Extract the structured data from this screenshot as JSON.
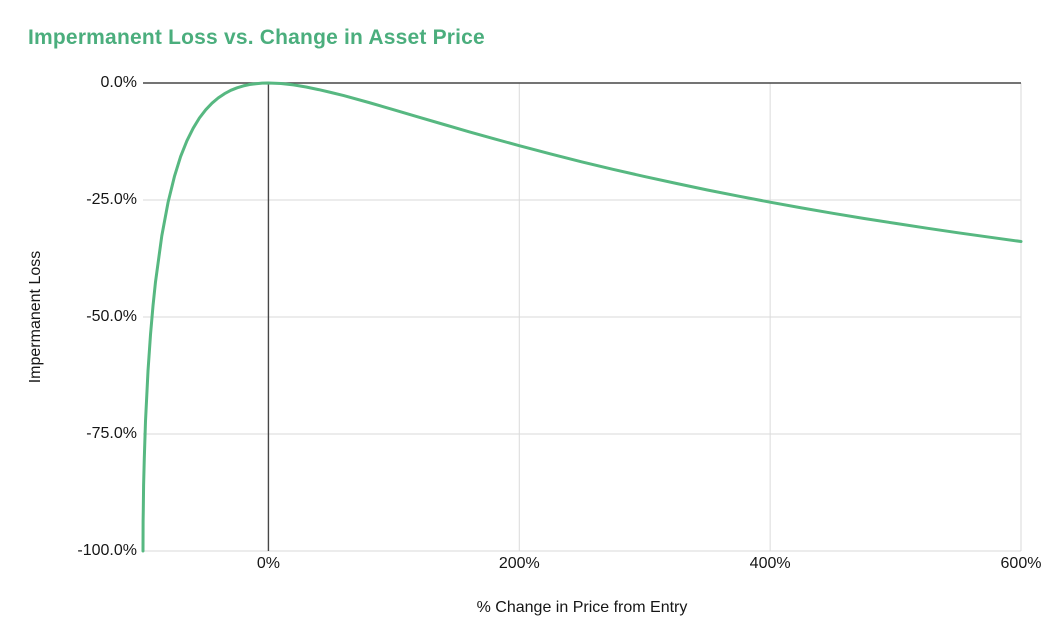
{
  "title": "Impermanent Loss vs. Change in Asset Price",
  "colors": {
    "title": "#4bae7d",
    "line": "#57b881",
    "grid": "#dadada",
    "zero_axis": "#474747",
    "tick_text": "#161616"
  },
  "chart_data": {
    "type": "line",
    "title": "Impermanent Loss vs. Change in Asset Price",
    "xlabel": "% Change in Price from Entry",
    "ylabel": "Impermanent Loss",
    "xlim": [
      -100,
      600
    ],
    "ylim": [
      -100,
      0
    ],
    "grid": true,
    "legend": false,
    "x_ticks": [
      {
        "value": 0,
        "label": "0%"
      },
      {
        "value": 200,
        "label": "200%"
      },
      {
        "value": 400,
        "label": "400%"
      },
      {
        "value": 600,
        "label": "600%"
      }
    ],
    "y_ticks": [
      {
        "value": 0,
        "label": "0.0%"
      },
      {
        "value": -25,
        "label": "-25.0%"
      },
      {
        "value": -50,
        "label": "-50.0%"
      },
      {
        "value": -75,
        "label": "-75.0%"
      },
      {
        "value": -100,
        "label": "-100.0%"
      }
    ],
    "series": [
      {
        "name": "Impermanent Loss",
        "points": [
          [
            -100,
            -100
          ],
          [
            -99.9,
            -93.68
          ],
          [
            -99.8,
            -91.07
          ],
          [
            -99.5,
            -85.93
          ],
          [
            -99,
            -80.2
          ],
          [
            -98,
            -72.27
          ],
          [
            -96,
            -61.54
          ],
          [
            -94,
            -53.78
          ],
          [
            -92,
            -47.62
          ],
          [
            -90,
            -42.5
          ],
          [
            -85,
            -32.64
          ],
          [
            -80,
            -25.46
          ],
          [
            -75,
            -20.0
          ],
          [
            -70,
            -15.73
          ],
          [
            -65,
            -12.35
          ],
          [
            -60,
            -9.65
          ],
          [
            -55,
            -7.47
          ],
          [
            -50,
            -5.72
          ],
          [
            -45,
            -4.31
          ],
          [
            -40,
            -3.18
          ],
          [
            -35,
            -2.28
          ],
          [
            -30,
            -1.57
          ],
          [
            -25,
            -1.03
          ],
          [
            -20,
            -0.62
          ],
          [
            -15,
            -0.33
          ],
          [
            -10,
            -0.14
          ],
          [
            -5,
            -0.03
          ],
          [
            0,
            0
          ],
          [
            10,
            -0.11
          ],
          [
            20,
            -0.41
          ],
          [
            30,
            -0.85
          ],
          [
            40,
            -1.4
          ],
          [
            50,
            -2.02
          ],
          [
            60,
            -2.7
          ],
          [
            80,
            -4.17
          ],
          [
            100,
            -5.72
          ],
          [
            120,
            -7.3
          ],
          [
            140,
            -8.87
          ],
          [
            160,
            -10.42
          ],
          [
            180,
            -11.93
          ],
          [
            200,
            -13.4
          ],
          [
            225,
            -15.16
          ],
          [
            250,
            -16.85
          ],
          [
            275,
            -18.46
          ],
          [
            300,
            -20.0
          ],
          [
            325,
            -21.46
          ],
          [
            350,
            -22.86
          ],
          [
            375,
            -24.19
          ],
          [
            400,
            -25.46
          ],
          [
            425,
            -26.68
          ],
          [
            450,
            -27.84
          ],
          [
            475,
            -28.95
          ],
          [
            500,
            -30.01
          ],
          [
            525,
            -31.03
          ],
          [
            550,
            -32.01
          ],
          [
            575,
            -32.95
          ],
          [
            600,
            -33.86
          ]
        ]
      }
    ]
  }
}
